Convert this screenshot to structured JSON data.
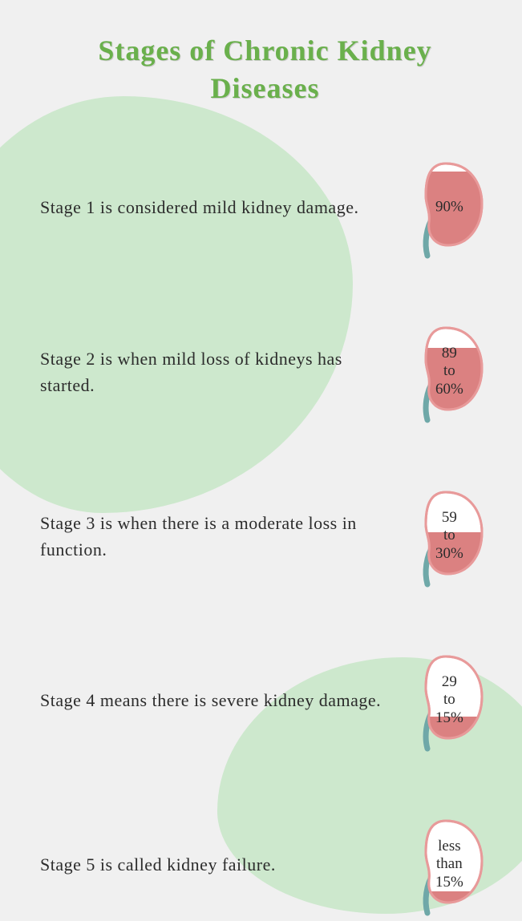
{
  "title": "Stages of Chronic Kidney Diseases",
  "title_color": "#6ab04c",
  "title_fontsize": 36,
  "background_color": "#f0f0f0",
  "blob_color": "#cde8cd",
  "text_color": "#2c2c2c",
  "text_fontsize": 22,
  "kidney_fill_color": "#db8181",
  "kidney_outline_color": "#e89a9a",
  "kidney_tube_color": "#6fa8a8",
  "stages": [
    {
      "text": "Stage 1 is considered mild kidney damage.",
      "label": "90%",
      "fill_percent": 90
    },
    {
      "text": "Stage 2 is when mild loss of kidneys has started.",
      "label": "89\nto\n60%",
      "fill_percent": 75
    },
    {
      "text": "Stage 3 is when there is a moderate loss in function.",
      "label": "59\nto\n30%",
      "fill_percent": 50
    },
    {
      "text": "Stage 4 means there is severe kidney damage.",
      "label": "29\nto\n15%",
      "fill_percent": 25
    },
    {
      "text": "Stage 5 is called kidney failure.",
      "label": "less\nthan\n15%",
      "fill_percent": 12
    }
  ]
}
